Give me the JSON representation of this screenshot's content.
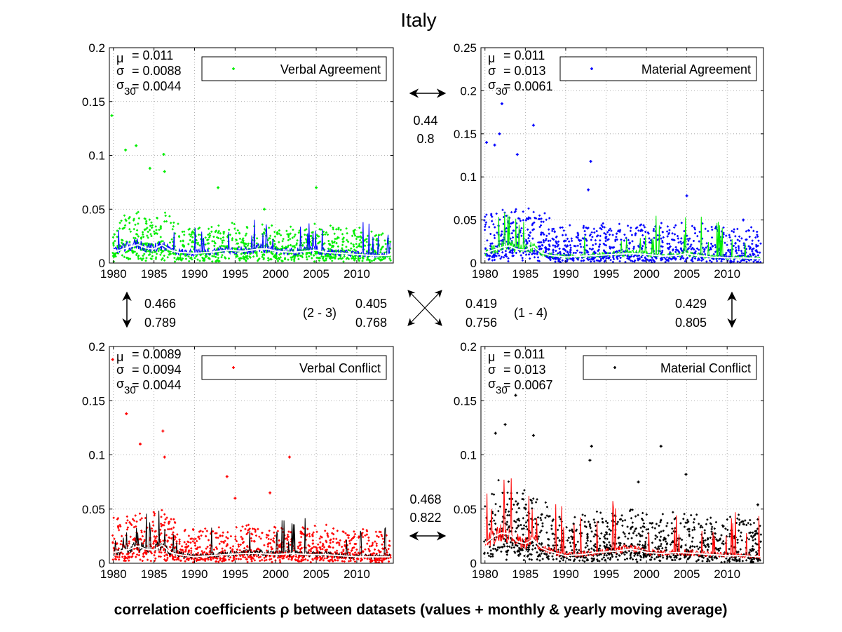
{
  "title": "Italy",
  "caption": "correlation coefficients ρ between datasets (values + monthly & yearly moving average)",
  "colors": {
    "green": "#00ee00",
    "blue": "#0000ff",
    "red": "#ff0000",
    "black": "#000000",
    "white": "#ffffff",
    "grid": "#999999"
  },
  "chart_data": [
    {
      "type": "scatter",
      "legend": "Verbal Agreement",
      "legend_placement": "top-right",
      "point_color": "#00ee00",
      "monthly_color": "#0000ff",
      "yearly_color": "#ffffff",
      "stats": {
        "mu_label": "μ",
        "mu_value": "= 0.011",
        "sigma_label": "σ",
        "sigma_value": "= 0.0088",
        "sigma30_label": "σ",
        "sigma30_sub": "30",
        "sigma30_value": "= 0.0044"
      },
      "xlim": [
        1979.5,
        2014.5
      ],
      "ylim": [
        0,
        0.2
      ],
      "xticks": [
        "1980",
        "1985",
        "1990",
        "1995",
        "2000",
        "2005",
        "2010"
      ],
      "yticks": [
        "0",
        "0.05",
        "0.1",
        "0.15",
        "0.2"
      ],
      "grid": true,
      "base": 0.011,
      "spread": 0.0088,
      "yearly": [
        [
          1980,
          0.01
        ],
        [
          1982,
          0.015
        ],
        [
          1983,
          0.017
        ],
        [
          1984,
          0.014
        ],
        [
          1985,
          0.013
        ],
        [
          1986,
          0.017
        ],
        [
          1987,
          0.012
        ],
        [
          1988,
          0.01
        ],
        [
          1990,
          0.009
        ],
        [
          1992,
          0.01
        ],
        [
          1994,
          0.012
        ],
        [
          1996,
          0.011
        ],
        [
          1998,
          0.013
        ],
        [
          1999,
          0.013
        ],
        [
          2000,
          0.011
        ],
        [
          2002,
          0.01
        ],
        [
          2004,
          0.011
        ],
        [
          2005,
          0.012
        ],
        [
          2006,
          0.01
        ],
        [
          2008,
          0.009
        ],
        [
          2010,
          0.008
        ],
        [
          2012,
          0.007
        ],
        [
          2014,
          0.007
        ]
      ],
      "spikes": [
        [
          1979.8,
          0.137
        ],
        [
          1981.5,
          0.105
        ],
        [
          1982.8,
          0.109
        ],
        [
          1984.5,
          0.088
        ],
        [
          1986.2,
          0.101
        ],
        [
          1986.3,
          0.085
        ],
        [
          1992.9,
          0.07
        ],
        [
          2005.0,
          0.07
        ],
        [
          1998.6,
          0.05
        ]
      ]
    },
    {
      "type": "scatter",
      "legend": "Material Agreement",
      "legend_placement": "top-right",
      "point_color": "#0000ff",
      "monthly_color": "#00ee00",
      "yearly_color": "#ffffff",
      "stats": {
        "mu_label": "μ",
        "mu_value": "= 0.011",
        "sigma_label": "σ",
        "sigma_value": "= 0.013",
        "sigma30_label": "σ",
        "sigma30_sub": "30",
        "sigma30_value": "= 0.0061"
      },
      "xlim": [
        1979.5,
        2014.5
      ],
      "ylim": [
        0,
        0.25
      ],
      "xticks": [
        "1980",
        "1985",
        "1990",
        "1995",
        "2000",
        "2005",
        "2010"
      ],
      "yticks": [
        "0",
        "0.05",
        "0.1",
        "0.15",
        "0.2",
        "0.25"
      ],
      "grid": true,
      "base": 0.011,
      "spread": 0.013,
      "yearly": [
        [
          1980,
          0.012
        ],
        [
          1982,
          0.018
        ],
        [
          1983,
          0.02
        ],
        [
          1984,
          0.016
        ],
        [
          1985,
          0.015
        ],
        [
          1986,
          0.019
        ],
        [
          1987,
          0.012
        ],
        [
          1988,
          0.009
        ],
        [
          1990,
          0.007
        ],
        [
          1992,
          0.008
        ],
        [
          1994,
          0.009
        ],
        [
          1996,
          0.01
        ],
        [
          1998,
          0.011
        ],
        [
          2000,
          0.01
        ],
        [
          2002,
          0.008
        ],
        [
          2004,
          0.009
        ],
        [
          2005,
          0.011
        ],
        [
          2006,
          0.009
        ],
        [
          2008,
          0.007
        ],
        [
          2010,
          0.006
        ],
        [
          2012,
          0.006
        ],
        [
          2014,
          0.005
        ]
      ],
      "spikes": [
        [
          1982.1,
          0.185
        ],
        [
          1981.8,
          0.15
        ],
        [
          1986.0,
          0.16
        ],
        [
          1980.2,
          0.14
        ],
        [
          1981.2,
          0.137
        ],
        [
          1984.0,
          0.126
        ],
        [
          1993.1,
          0.118
        ],
        [
          1992.8,
          0.085
        ],
        [
          2005.0,
          0.078
        ],
        [
          2012.0,
          0.05
        ]
      ]
    },
    {
      "type": "scatter",
      "legend": "Verbal Conflict",
      "legend_placement": "top-right",
      "point_color": "#ff0000",
      "monthly_color": "#000000",
      "yearly_color": "#ffffff",
      "stats": {
        "mu_label": "μ",
        "mu_value": "= 0.0089",
        "sigma_label": "σ",
        "sigma_value": "= 0.0094",
        "sigma30_label": "σ",
        "sigma30_sub": "30",
        "sigma30_value": "= 0.0044"
      },
      "xlim": [
        1979.5,
        2014.5
      ],
      "ylim": [
        0,
        0.2
      ],
      "xticks": [
        "1980",
        "1985",
        "1990",
        "1995",
        "2000",
        "2005",
        "2010"
      ],
      "yticks": [
        "0",
        "0.05",
        "0.1",
        "0.15",
        "0.2"
      ],
      "grid": true,
      "base": 0.0089,
      "spread": 0.0094,
      "yearly": [
        [
          1980,
          0.01
        ],
        [
          1982,
          0.013
        ],
        [
          1983,
          0.016
        ],
        [
          1984,
          0.013
        ],
        [
          1985,
          0.012
        ],
        [
          1986,
          0.017
        ],
        [
          1987,
          0.01
        ],
        [
          1988,
          0.008
        ],
        [
          1990,
          0.006
        ],
        [
          1992,
          0.007
        ],
        [
          1994,
          0.008
        ],
        [
          1996,
          0.009
        ],
        [
          1998,
          0.009
        ],
        [
          2000,
          0.008
        ],
        [
          2002,
          0.009
        ],
        [
          2004,
          0.008
        ],
        [
          2006,
          0.008
        ],
        [
          2008,
          0.007
        ],
        [
          2010,
          0.006
        ],
        [
          2012,
          0.006
        ],
        [
          2014,
          0.006
        ]
      ],
      "spikes": [
        [
          1979.9,
          0.188
        ],
        [
          1981.6,
          0.138
        ],
        [
          1983.3,
          0.11
        ],
        [
          1986.1,
          0.122
        ],
        [
          1986.3,
          0.098
        ],
        [
          2001.7,
          0.098
        ],
        [
          1994.0,
          0.08
        ],
        [
          1999.3,
          0.065
        ],
        [
          1995.0,
          0.06
        ]
      ]
    },
    {
      "type": "scatter",
      "legend": "Material Conflict",
      "legend_placement": "top-right",
      "point_color": "#000000",
      "monthly_color": "#ff0000",
      "yearly_color": "#ffffff",
      "stats": {
        "mu_label": "μ",
        "mu_value": "= 0.011",
        "sigma_label": "σ",
        "sigma_value": "= 0.013",
        "sigma30_label": "σ",
        "sigma30_sub": "30",
        "sigma30_value": "= 0.0067"
      },
      "xlim": [
        1979.5,
        2014.5
      ],
      "ylim": [
        0,
        0.2
      ],
      "xticks": [
        "1980",
        "1985",
        "1990",
        "1995",
        "2000",
        "2005",
        "2010"
      ],
      "yticks": [
        "0",
        "0.05",
        "0.1",
        "0.15",
        "0.2"
      ],
      "grid": true,
      "base": 0.011,
      "spread": 0.013,
      "yearly": [
        [
          1980,
          0.018
        ],
        [
          1981,
          0.024
        ],
        [
          1982,
          0.028
        ],
        [
          1983,
          0.027
        ],
        [
          1984,
          0.02
        ],
        [
          1985,
          0.018
        ],
        [
          1986,
          0.022
        ],
        [
          1987,
          0.014
        ],
        [
          1988,
          0.011
        ],
        [
          1990,
          0.007
        ],
        [
          1992,
          0.008
        ],
        [
          1994,
          0.01
        ],
        [
          1996,
          0.011
        ],
        [
          1998,
          0.013
        ],
        [
          1999,
          0.012
        ],
        [
          2000,
          0.01
        ],
        [
          2002,
          0.009
        ],
        [
          2004,
          0.01
        ],
        [
          2006,
          0.009
        ],
        [
          2008,
          0.008
        ],
        [
          2010,
          0.007
        ],
        [
          2012,
          0.007
        ],
        [
          2014,
          0.006
        ]
      ],
      "spikes": [
        [
          1983.8,
          0.155
        ],
        [
          1981.3,
          0.12
        ],
        [
          1982.5,
          0.128
        ],
        [
          1986.0,
          0.118
        ],
        [
          1993.2,
          0.108
        ],
        [
          2001.8,
          0.108
        ],
        [
          1993.0,
          0.095
        ],
        [
          2004.9,
          0.082
        ],
        [
          2013.8,
          0.054
        ],
        [
          1999.0,
          0.075
        ]
      ]
    }
  ],
  "correlations": {
    "top": {
      "first": "0.44",
      "second": "0.8"
    },
    "bottom": {
      "first": "0.468",
      "second": "0.822"
    },
    "left": {
      "first": "0.466",
      "second": "0.789"
    },
    "right": {
      "first": "0.429",
      "second": "0.805"
    },
    "diag_2_3": {
      "label": "(2 - 3)",
      "first": "0.405",
      "second": "0.768"
    },
    "diag_1_4": {
      "label": "(1 - 4)",
      "first": "0.419",
      "second": "0.756"
    }
  }
}
